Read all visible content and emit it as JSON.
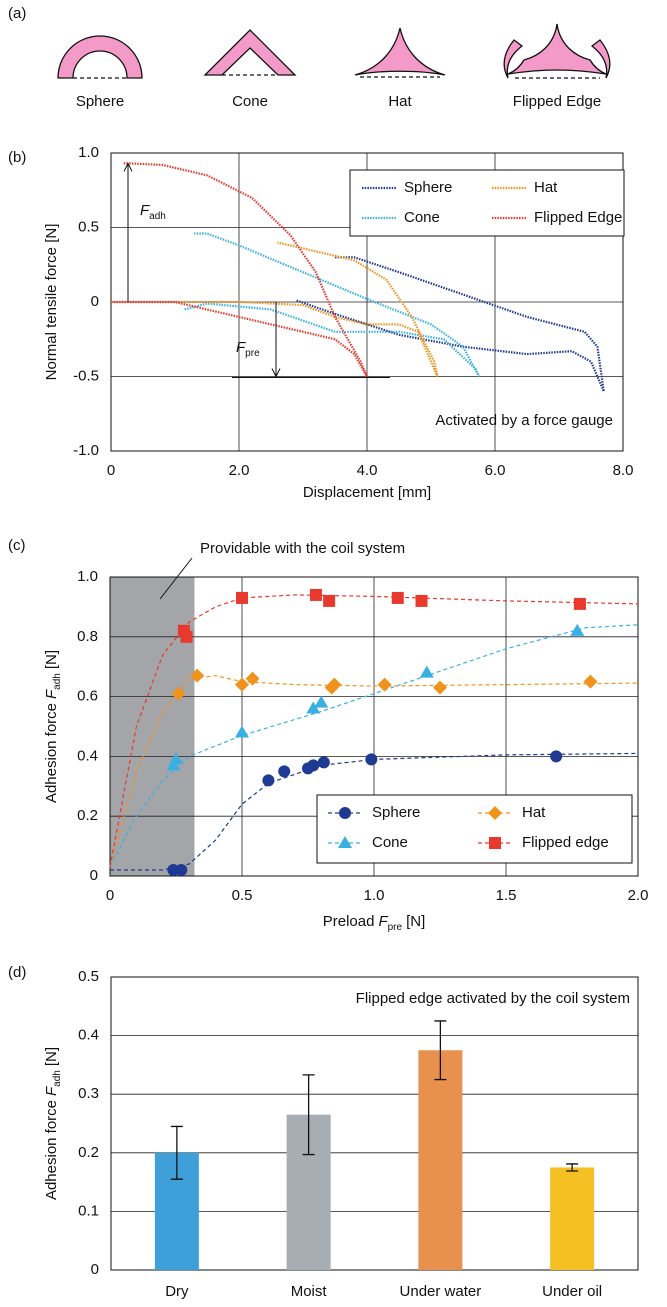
{
  "diagram": {
    "panel_label": "(a)",
    "labels": [
      "Sphere",
      "Cone",
      "Hat",
      "Flipped Edge"
    ]
  },
  "chart_data": [
    {
      "type": "line",
      "panel_label": "(b)",
      "xlabel": "Displacement [mm]",
      "ylabel": "Normal tensile force [N]",
      "xlim": [
        0,
        8
      ],
      "ylim": [
        -1,
        1
      ],
      "xticks": [
        0,
        {
          "value": 2,
          "label": "2.0"
        },
        {
          "value": 4,
          "label": "4.0"
        },
        {
          "value": 6,
          "label": "6.0"
        },
        {
          "value": 8,
          "label": "8.0"
        }
      ],
      "yticks": [
        {
          "value": 1,
          "label": "1.0"
        },
        0.5,
        0,
        -0.5,
        {
          "value": -1,
          "label": "-1.0"
        }
      ],
      "grid": "both",
      "legend": "upper right",
      "annotations": [
        {
          "symbol": "F",
          "sub": "adh"
        },
        {
          "symbol": "F",
          "sub": "pre"
        }
      ],
      "note": "Activated by a force gauge",
      "series": [
        {
          "name": "Sphere",
          "color": "#1f3a93",
          "x": [
            2.9,
            3.5,
            4.5,
            5.5,
            6.5,
            7.2,
            7.5,
            7.7,
            7.6,
            7.4,
            6.5,
            5.5,
            4.5,
            3.8,
            3.5
          ],
          "values": [
            0.01,
            -0.08,
            -0.22,
            -0.3,
            -0.35,
            -0.33,
            -0.4,
            -0.6,
            -0.3,
            -0.2,
            -0.1,
            0.05,
            0.2,
            0.3,
            0.3
          ]
        },
        {
          "name": "Cone",
          "color": "#3ab0e2",
          "x": [
            1.15,
            1.5,
            2.5,
            3.5,
            4.5,
            5.2,
            5.7,
            5.75,
            5.5,
            5.0,
            4.0,
            3.0,
            2.0,
            1.5,
            1.3
          ],
          "values": [
            -0.05,
            -0.01,
            -0.05,
            -0.2,
            -0.2,
            -0.25,
            -0.45,
            -0.5,
            -0.3,
            -0.15,
            0.02,
            0.2,
            0.38,
            0.46,
            0.46
          ]
        },
        {
          "name": "Hat",
          "color": "#f0931c",
          "x": [
            0,
            1,
            2,
            3,
            3.5,
            4,
            4.5,
            4.8,
            5.0,
            5.1,
            5.05,
            4.7,
            4.3,
            3.8,
            3.0,
            2.6
          ],
          "values": [
            0,
            0,
            0,
            -0.02,
            -0.1,
            -0.15,
            -0.15,
            -0.2,
            -0.4,
            -0.5,
            -0.4,
            -0.1,
            0.15,
            0.28,
            0.36,
            0.4
          ]
        },
        {
          "name": "Flipped Edge",
          "color": "#e8392f",
          "x": [
            0,
            1,
            1.5,
            2.5,
            3.0,
            3.5,
            3.8,
            4.0,
            3.9,
            3.5,
            3.2,
            2.8,
            2.2,
            1.5,
            0.8,
            0.3,
            0.2
          ],
          "values": [
            0,
            0,
            -0.05,
            -0.15,
            -0.2,
            -0.25,
            -0.35,
            -0.5,
            -0.4,
            -0.1,
            0.2,
            0.45,
            0.7,
            0.85,
            0.92,
            0.93,
            0.93
          ]
        }
      ]
    },
    {
      "type": "scatter",
      "panel_label": "(c)",
      "xlabel": {
        "text": "Preload",
        "symbol": "F",
        "sub": "pre",
        "unit": "[N]"
      },
      "ylabel": {
        "text": "Adhesion force",
        "symbol": "F",
        "sub": "adh",
        "unit": "[N]"
      },
      "xlim": [
        0,
        2
      ],
      "ylim": [
        0,
        1
      ],
      "xticks": [
        0,
        0.5,
        {
          "value": 1,
          "label": "1.0"
        },
        1.5,
        {
          "value": 2,
          "label": "2.0"
        }
      ],
      "yticks": [
        0,
        0.2,
        0.4,
        0.6,
        0.8,
        {
          "value": 1,
          "label": "1.0"
        }
      ],
      "grid": "both",
      "legend": "lower right",
      "shaded_region": {
        "xlim": [
          0,
          0.32
        ],
        "label": "Providable with the coil system"
      },
      "series": [
        {
          "name": "Sphere",
          "color": "#1f3a93",
          "marker": "circle",
          "x": [
            0.24,
            0.27,
            0.6,
            0.66,
            0.75,
            0.77,
            0.81,
            0.99,
            1.69
          ],
          "values": [
            0.02,
            0.02,
            0.32,
            0.35,
            0.36,
            0.37,
            0.38,
            0.39,
            0.4
          ],
          "fit_x": [
            0,
            0.2,
            0.3,
            0.4,
            0.5,
            0.6,
            0.8,
            1.0,
            1.5,
            2.0
          ],
          "fit_values": [
            0.02,
            0.02,
            0.04,
            0.12,
            0.24,
            0.31,
            0.37,
            0.39,
            0.405,
            0.41
          ]
        },
        {
          "name": "Cone",
          "color": "#3ab0e2",
          "marker": "triangle",
          "x": [
            0.24,
            0.25,
            0.5,
            0.77,
            0.8,
            1.2,
            1.77
          ],
          "values": [
            0.37,
            0.39,
            0.48,
            0.56,
            0.58,
            0.68,
            0.82
          ],
          "fit_x": [
            0,
            0.1,
            0.2,
            0.3,
            0.5,
            0.8,
            1.0,
            1.2,
            1.5,
            1.8,
            2.0
          ],
          "fit_values": [
            0.03,
            0.2,
            0.32,
            0.4,
            0.47,
            0.55,
            0.61,
            0.67,
            0.76,
            0.83,
            0.84
          ]
        },
        {
          "name": "Hat",
          "color": "#f0931c",
          "marker": "diamond",
          "x": [
            0.26,
            0.33,
            0.5,
            0.54,
            0.84,
            0.85,
            1.04,
            1.25,
            1.82
          ],
          "values": [
            0.61,
            0.67,
            0.64,
            0.66,
            0.63,
            0.64,
            0.64,
            0.63,
            0.65
          ],
          "fit_x": [
            0,
            0.1,
            0.2,
            0.3,
            0.4,
            0.5,
            0.7,
            1.0,
            1.5,
            2.0
          ],
          "fit_values": [
            0.03,
            0.35,
            0.55,
            0.66,
            0.67,
            0.65,
            0.64,
            0.635,
            0.64,
            0.645
          ]
        },
        {
          "name": "Flipped edge",
          "color": "#e8392f",
          "marker": "square",
          "x": [
            0.28,
            0.29,
            0.5,
            0.78,
            0.83,
            1.09,
            1.18,
            1.78
          ],
          "values": [
            0.82,
            0.8,
            0.93,
            0.94,
            0.92,
            0.93,
            0.92,
            0.91
          ],
          "fit_x": [
            0,
            0.1,
            0.2,
            0.3,
            0.4,
            0.5,
            0.7,
            1.0,
            1.5,
            2.0
          ],
          "fit_values": [
            0.03,
            0.5,
            0.74,
            0.85,
            0.9,
            0.93,
            0.94,
            0.935,
            0.92,
            0.91
          ]
        }
      ]
    },
    {
      "type": "bar",
      "panel_label": "(d)",
      "ylabel": {
        "text": "Adhesion force",
        "symbol": "F",
        "sub": "adh",
        "unit": "[N]"
      },
      "note": "Flipped edge activated by the coil system",
      "categories": [
        "Dry",
        "Moist",
        "Under water",
        "Under oil"
      ],
      "values": [
        0.2,
        0.265,
        0.375,
        0.175
      ],
      "errors": [
        0.045,
        0.068,
        0.05,
        0.006
      ],
      "colors": [
        "#3fa0d9",
        "#a7adb3",
        "#e8914f",
        "#f5c023"
      ],
      "ylim": [
        0,
        0.5
      ],
      "yticks": [
        0,
        0.1,
        0.2,
        0.3,
        0.4,
        0.5
      ],
      "grid": "y"
    }
  ]
}
